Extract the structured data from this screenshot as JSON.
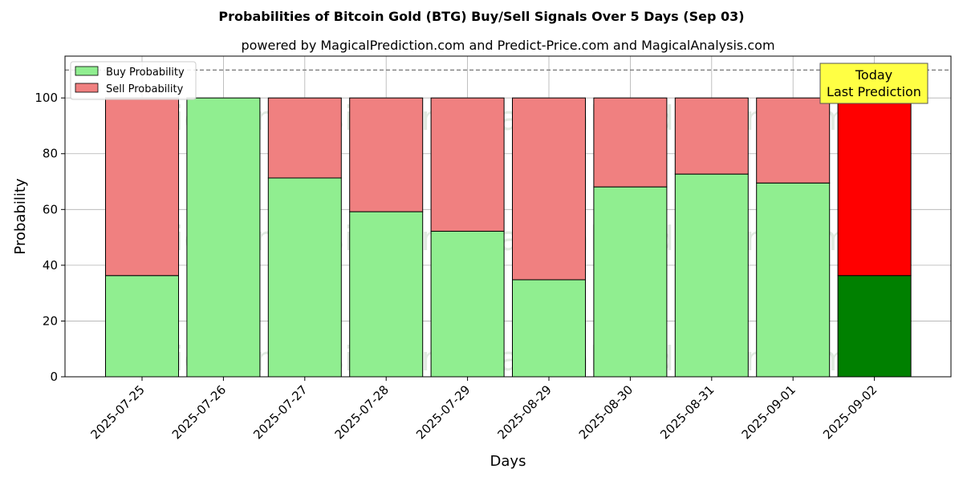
{
  "chart_data": {
    "type": "bar",
    "stacked": true,
    "title": "Probabilities of Bitcoin Gold (BTG) Buy/Sell Signals Over 5 Days (Sep 03)",
    "subtitle": "powered by MagicalPrediction.com and Predict-Price.com and MagicalAnalysis.com",
    "xlabel": "Days",
    "ylabel": "Probability",
    "ylim": [
      0,
      115
    ],
    "yticks": [
      0,
      20,
      40,
      60,
      80,
      100
    ],
    "reference_line": 110,
    "grid": true,
    "legend_position": "top-left",
    "categories": [
      "2025-07-25",
      "2025-07-26",
      "2025-07-27",
      "2025-07-28",
      "2025-07-29",
      "2025-08-29",
      "2025-08-30",
      "2025-08-31",
      "2025-09-01",
      "2025-09-02"
    ],
    "series": [
      {
        "name": "Buy Probability",
        "color": "#90ee90",
        "highlight_color": "#008000",
        "values": [
          36.3,
          100,
          71.3,
          59.2,
          52.2,
          34.8,
          68.1,
          72.7,
          69.5,
          36.3
        ]
      },
      {
        "name": "Sell Probability",
        "color": "#f08080",
        "highlight_color": "#ff0000",
        "values": [
          63.7,
          0,
          28.7,
          40.8,
          47.8,
          65.2,
          31.9,
          27.3,
          30.5,
          63.7
        ]
      }
    ],
    "highlight_index": 9,
    "annotation": {
      "line1": "Today",
      "line2": "Last Prediction",
      "color": "#ffff44"
    },
    "watermarks": [
      "MagicalAnalysis.com",
      "MagicalPrediction.com"
    ]
  }
}
